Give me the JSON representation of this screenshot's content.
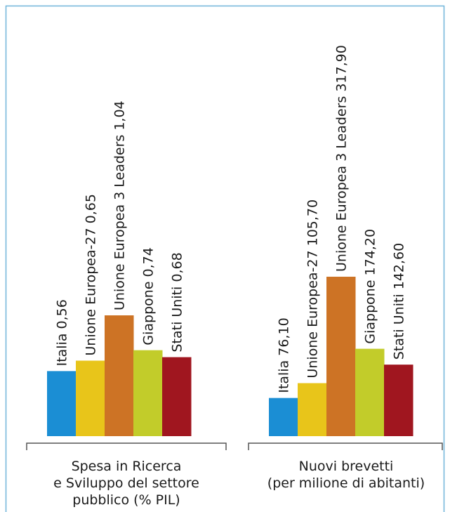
{
  "colors": {
    "frame": "#6fb3d9",
    "axis": "#555555",
    "text": "#1a1a1a"
  },
  "chart_data": [
    {
      "type": "bar",
      "categories": [
        "Italia",
        "Unione Europea-27",
        "Unione Europea 3 Leaders",
        "Giappone",
        "Stati Uniti"
      ],
      "value_labels": [
        "Italia 0,56",
        "Unione Europea-27 0,65",
        "Unione Europea 3 Leaders 1,04",
        "Giappone 0,74",
        "Stati Uniti 0,68"
      ],
      "values": [
        0.56,
        0.65,
        1.04,
        0.74,
        0.68
      ],
      "colors": [
        "#1b8ed4",
        "#e8c51a",
        "#cd7325",
        "#c2cc2a",
        "#a0161f"
      ],
      "xlabel_lines": [
        "Spesa in Ricerca",
        "e Sviluppo del settore",
        "pubblico (% PIL)"
      ],
      "ylim": [
        0,
        1.04
      ]
    },
    {
      "type": "bar",
      "categories": [
        "Italia",
        "Unione Europea-27",
        "Unione Europea 3 Leaders",
        "Giappone",
        "Stati Uniti"
      ],
      "value_labels": [
        "Italia 76,10",
        "Unione Europea-27 105,70",
        "Unione Europea 3 Leaders 317,90",
        "Giappone 174,20",
        "Stati Uniti 142,60"
      ],
      "values": [
        76.1,
        105.7,
        317.9,
        174.2,
        142.6
      ],
      "colors": [
        "#1b8ed4",
        "#e8c51a",
        "#cd7325",
        "#c2cc2a",
        "#a0161f"
      ],
      "xlabel_lines": [
        "Nuovi brevetti",
        "(per milione di abitanti)"
      ],
      "ylim": [
        0,
        317.9
      ]
    }
  ]
}
